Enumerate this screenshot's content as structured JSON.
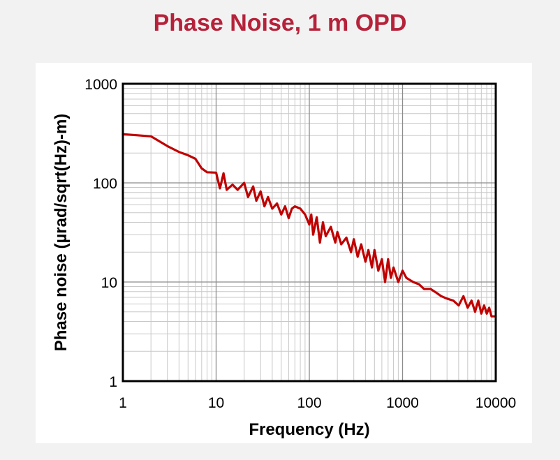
{
  "page": {
    "accent_color": "#b5223a",
    "line_color": "#c00000"
  },
  "chart_data": {
    "type": "line",
    "title": "Phase Noise, 1 m OPD",
    "xlabel": "Frequency (Hz)",
    "ylabel": "Phase noise (µrad/sqrt(Hz)-m)",
    "xscale": "log",
    "yscale": "log",
    "xlim": [
      1,
      10000
    ],
    "ylim": [
      1,
      1000
    ],
    "xticks": [
      1,
      10,
      100,
      1000,
      10000
    ],
    "xtick_labels": [
      "1",
      "10",
      "100",
      "1000",
      "10000"
    ],
    "yticks": [
      1,
      10,
      100,
      1000
    ],
    "ytick_labels": [
      "1",
      "10",
      "100",
      "1000"
    ],
    "grid": true,
    "series": [
      {
        "name": "Phase noise",
        "x": [
          1,
          2,
          3,
          4,
          5,
          6,
          7,
          8,
          10,
          11,
          12,
          13,
          15,
          17,
          20,
          22,
          25,
          27,
          30,
          33,
          36,
          40,
          45,
          50,
          55,
          60,
          65,
          70,
          80,
          90,
          100,
          105,
          110,
          120,
          130,
          140,
          150,
          170,
          190,
          200,
          220,
          250,
          280,
          300,
          330,
          360,
          400,
          430,
          470,
          500,
          550,
          600,
          650,
          700,
          750,
          800,
          900,
          1000,
          1100,
          1300,
          1500,
          1700,
          2000,
          2300,
          2600,
          3000,
          3500,
          4000,
          4500,
          5000,
          5500,
          6000,
          6500,
          7000,
          7500,
          8000,
          8500,
          9000,
          10000
        ],
        "y": [
          310,
          295,
          235,
          205,
          190,
          175,
          140,
          128,
          127,
          88,
          125,
          85,
          96,
          85,
          100,
          72,
          92,
          66,
          82,
          58,
          72,
          55,
          62,
          48,
          58,
          44,
          55,
          58,
          55,
          48,
          38,
          48,
          30,
          45,
          25,
          40,
          29,
          36,
          25,
          32,
          24,
          28,
          20,
          27,
          18,
          24,
          16,
          21,
          14,
          21,
          13,
          17,
          10,
          17,
          11,
          14,
          10,
          13,
          11,
          10,
          9.5,
          8.5,
          8.5,
          7.8,
          7.2,
          6.8,
          6.5,
          5.8,
          7.2,
          5.5,
          6.5,
          5.0,
          6.5,
          4.8,
          5.8,
          4.8,
          5.5,
          4.5,
          4.5
        ]
      }
    ]
  }
}
